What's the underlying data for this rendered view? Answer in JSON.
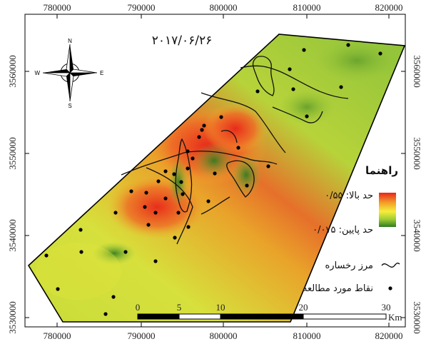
{
  "map": {
    "date": "۲۰۱۷/۰۶/۲۶",
    "x_ticks": [
      "780000",
      "790000",
      "800000",
      "810000",
      "820000"
    ],
    "y_ticks": [
      "3560000",
      "3550000",
      "3540000",
      "3530000"
    ],
    "north_arrow": {
      "n": "N",
      "s": "S",
      "e": "E",
      "w": "W"
    }
  },
  "legend": {
    "title": "راهنما",
    "high_label": "حد بالا: ۰/۵۵",
    "low_label": "حد پایین: ۰/۰۷۵",
    "boundary_label": "مرز رخساره",
    "points_label": "نقاط مورد مطالعه",
    "ramp_colors": [
      "#e8261a",
      "#f3a12a",
      "#f6ee3a",
      "#9dcc34",
      "#2d7a1f"
    ]
  },
  "scalebar": {
    "ticks": [
      "0",
      "5",
      "10",
      "20",
      "30"
    ],
    "unit": "Km"
  }
}
